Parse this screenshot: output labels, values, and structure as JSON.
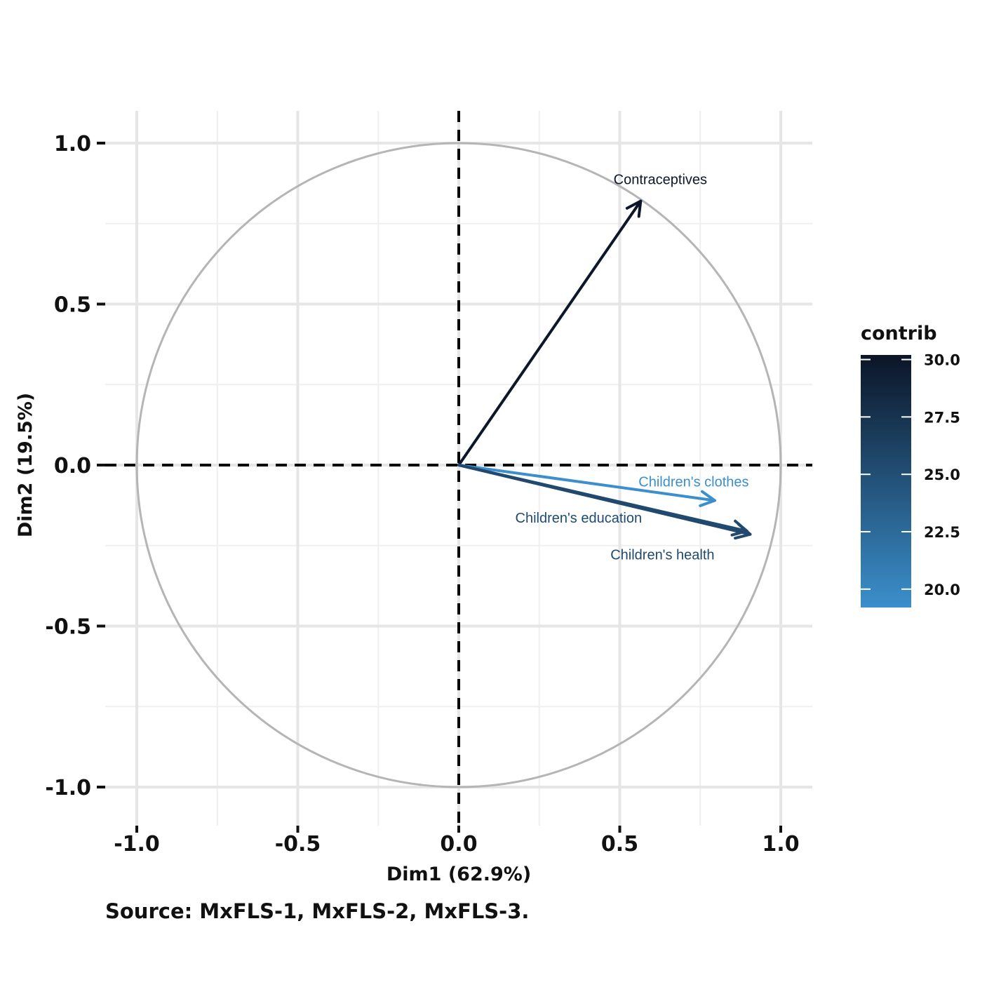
{
  "chart_data": {
    "type": "scatter",
    "subtype": "pca-variable-correlation-circle",
    "xlabel": "Dim1 (62.9%)",
    "ylabel": "Dim2 (19.5%)",
    "xlim": [
      -1.1,
      1.1
    ],
    "ylim": [
      -1.1,
      1.1
    ],
    "x_ticks": [
      -1.0,
      -0.5,
      0.0,
      0.5,
      1.0
    ],
    "y_ticks": [
      -1.0,
      -0.5,
      0.0,
      0.5,
      1.0
    ],
    "x_tick_labels": [
      "-1.0",
      "-0.5",
      "0.0",
      "0.5",
      "1.0"
    ],
    "y_tick_labels": [
      "-1.0",
      "-0.5",
      "0.0",
      "0.5",
      "1.0"
    ],
    "grid": true,
    "unit_circle": true,
    "variables": [
      {
        "name": "Contraceptives",
        "x": 0.565,
        "y": 0.82,
        "contrib": 30.0
      },
      {
        "name": "Children's clothes",
        "x": 0.795,
        "y": -0.11,
        "contrib": 19.2
      },
      {
        "name": "Children's education",
        "x": 0.895,
        "y": -0.205,
        "contrib": 25.3
      },
      {
        "name": "Children's health",
        "x": 0.905,
        "y": -0.215,
        "contrib": 25.5
      }
    ],
    "legend": {
      "title": "contrib",
      "placement": "right",
      "range": [
        19.2,
        30.2
      ],
      "ticks": [
        30.0,
        27.5,
        25.0,
        22.5,
        20.0
      ],
      "tick_labels": [
        "30.0",
        "27.5",
        "25.0",
        "22.5",
        "20.0"
      ],
      "color_low": "#3b8fcc",
      "color_high": "#0b1526"
    },
    "caption": "Source: MxFLS-1, MxFLS-2, MxFLS-3."
  }
}
